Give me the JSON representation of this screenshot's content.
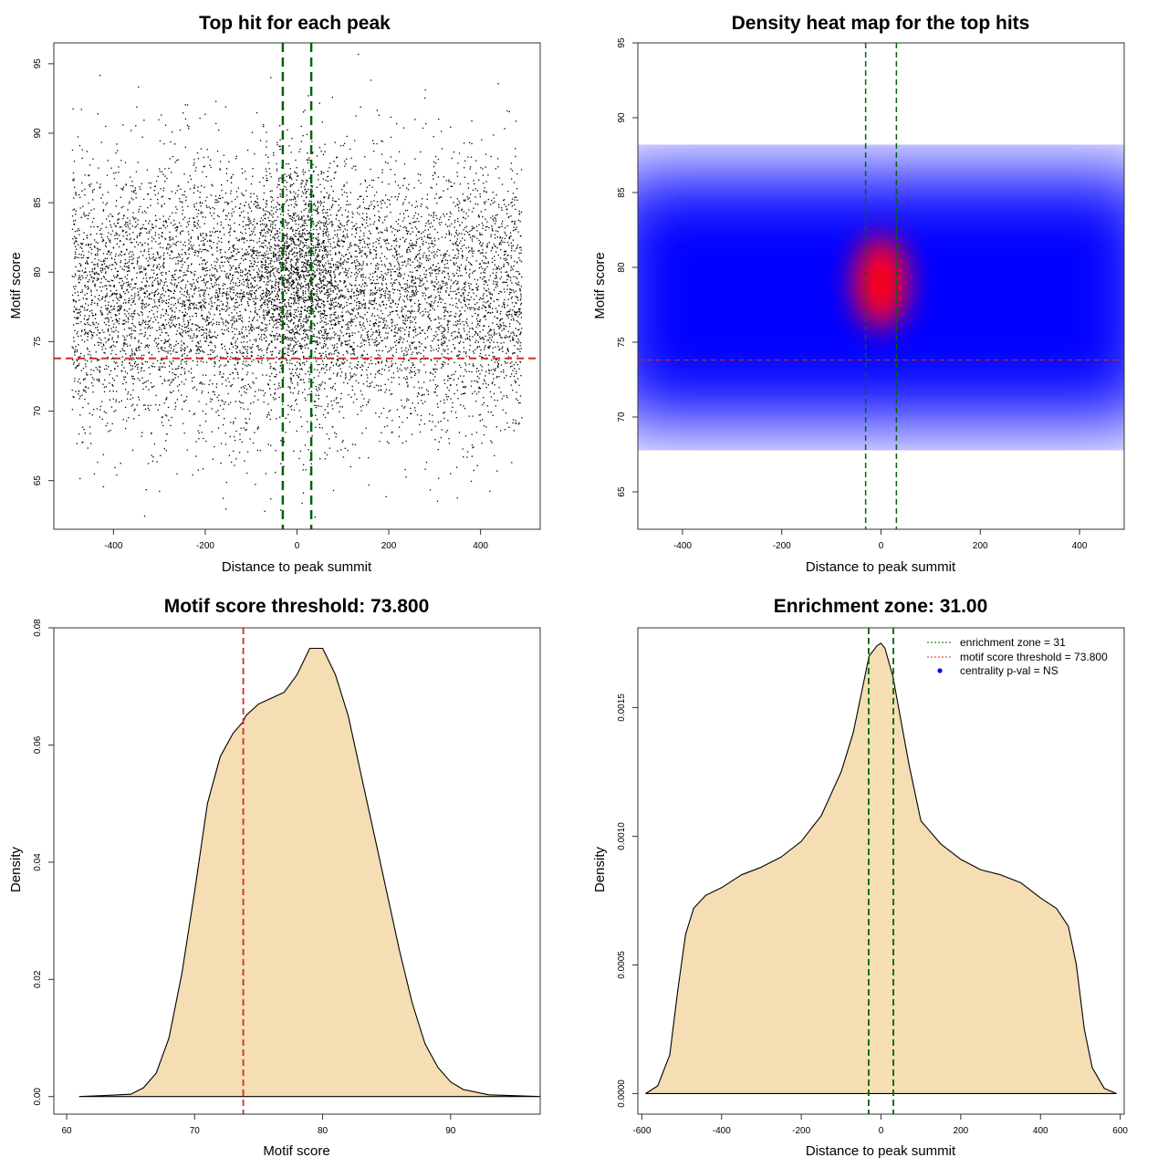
{
  "colors": {
    "points": "#000000",
    "enrichment_line": "#006400",
    "threshold_line": "#D22B2B",
    "density_fill": "#F5DEB3",
    "heat_low": "#ffffff",
    "heat_mid": "#0000ff",
    "heat_high": "#ff0000",
    "legend_point": "#0000ff"
  },
  "chart_data": [
    {
      "type": "scatter",
      "title": "Top hit for each peak",
      "xlabel": "Distance to peak summit",
      "ylabel": "Motif score",
      "xlim": [
        -530,
        530
      ],
      "ylim": [
        61.5,
        96.5
      ],
      "xticks": [
        -400,
        -200,
        0,
        200,
        400
      ],
      "yticks": [
        65,
        70,
        75,
        80,
        85,
        90,
        95
      ],
      "point_cloud": {
        "n_points": 9000,
        "x_range": [
          -490,
          490
        ],
        "score_mean": 78.3,
        "score_sd": 4.8,
        "central_peak_width": 60
      },
      "vlines": [
        -31,
        31
      ],
      "hline": 73.8
    },
    {
      "type": "heatmap",
      "title": "Density heat map for the top hits",
      "xlabel": "Distance to peak summit",
      "ylabel": "Motif score",
      "xlim": [
        -490,
        490
      ],
      "ylim": [
        62.5,
        95
      ],
      "xticks": [
        -400,
        -200,
        0,
        200,
        400
      ],
      "yticks": [
        65,
        70,
        75,
        80,
        85,
        90,
        95
      ],
      "hotspot": {
        "x": 0,
        "y": 79
      },
      "vlines": [
        -31,
        31
      ],
      "hline": 73.8
    },
    {
      "type": "area",
      "title": "Motif score threshold: 73.800",
      "xlabel": "Motif score",
      "ylabel": "Density",
      "xlim": [
        59,
        97
      ],
      "ylim": [
        -0.003,
        0.08
      ],
      "xticks": [
        60,
        70,
        80,
        90
      ],
      "yticks": [
        0.0,
        0.02,
        0.04,
        0.06,
        0.08
      ],
      "ytick_labels": [
        "0.00",
        "0.02",
        "0.04",
        "0.06",
        "0.08"
      ],
      "x": [
        61,
        63,
        65,
        66,
        67,
        68,
        69,
        70,
        71,
        72,
        73,
        73.8,
        74,
        75,
        76,
        77,
        78,
        79,
        80,
        81,
        82,
        83,
        84,
        85,
        86,
        87,
        88,
        89,
        90,
        91,
        93,
        97
      ],
      "y": [
        0.0,
        0.0002,
        0.0004,
        0.0015,
        0.004,
        0.01,
        0.021,
        0.035,
        0.05,
        0.058,
        0.062,
        0.064,
        0.065,
        0.067,
        0.068,
        0.069,
        0.072,
        0.0765,
        0.0765,
        0.072,
        0.065,
        0.055,
        0.045,
        0.035,
        0.025,
        0.016,
        0.009,
        0.005,
        0.0025,
        0.0012,
        0.0003,
        0.0
      ],
      "vline": 73.8
    },
    {
      "type": "area",
      "title": "Enrichment zone: 31.00",
      "xlabel": "Distance to peak summit",
      "ylabel": "Density",
      "xlim": [
        -610,
        610
      ],
      "ylim": [
        -8e-05,
        0.00181
      ],
      "xticks": [
        -600,
        -400,
        -200,
        0,
        200,
        400,
        600
      ],
      "yticks": [
        0.0,
        0.0005,
        0.001,
        0.0015
      ],
      "ytick_labels": [
        "0.0000",
        "0.0005",
        "0.0010",
        "0.0015"
      ],
      "x": [
        -590,
        -560,
        -530,
        -510,
        -490,
        -470,
        -440,
        -400,
        -350,
        -300,
        -250,
        -200,
        -150,
        -100,
        -70,
        -50,
        -30,
        -10,
        0,
        10,
        30,
        50,
        70,
        100,
        150,
        200,
        250,
        300,
        350,
        400,
        440,
        470,
        490,
        510,
        530,
        560,
        590
      ],
      "y": [
        0.0,
        3e-05,
        0.00015,
        0.0004,
        0.00062,
        0.00072,
        0.00077,
        0.0008,
        0.00085,
        0.00088,
        0.00092,
        0.00098,
        0.00108,
        0.00125,
        0.0014,
        0.00155,
        0.0017,
        0.00174,
        0.00175,
        0.00173,
        0.00162,
        0.00145,
        0.00128,
        0.00106,
        0.00097,
        0.00091,
        0.00087,
        0.00085,
        0.00082,
        0.00076,
        0.00072,
        0.00065,
        0.0005,
        0.00025,
        0.0001,
        2e-05,
        0.0
      ],
      "vlines": [
        -31,
        31
      ],
      "legend": {
        "position": "top-right",
        "entries": [
          {
            "label": "enrichment zone = 31",
            "kind": "dotted-line",
            "color": "#006400"
          },
          {
            "label": "motif score threshold = 73.800",
            "kind": "dotted-line",
            "color": "#D22B2B"
          },
          {
            "label": "centrality p-val = NS",
            "kind": "point",
            "color": "#0000ff"
          }
        ]
      }
    }
  ]
}
